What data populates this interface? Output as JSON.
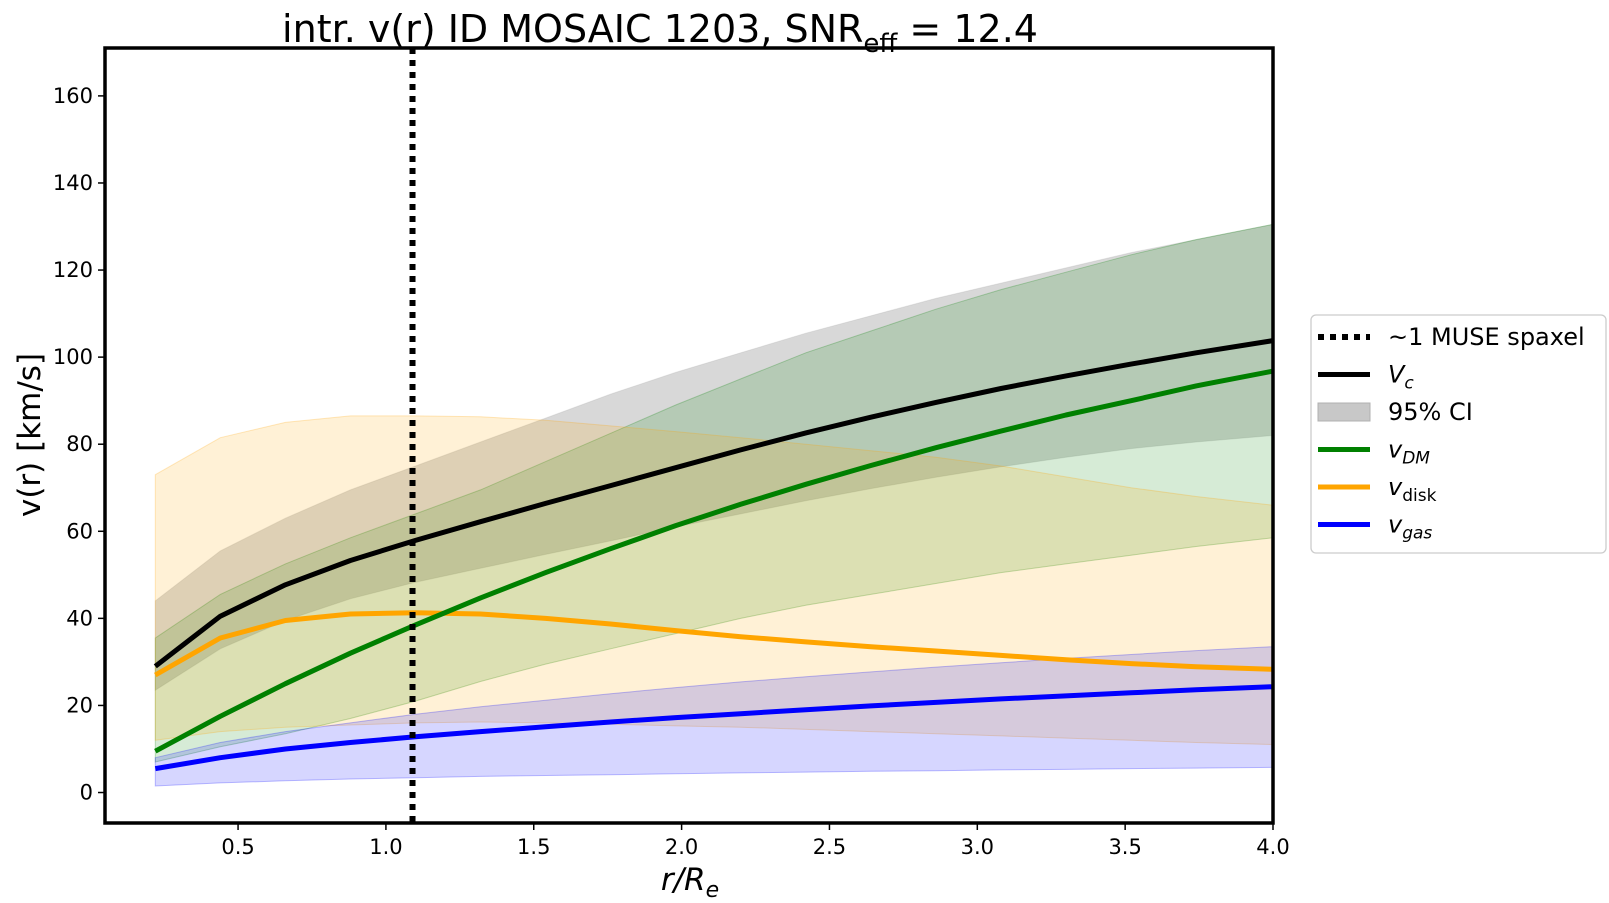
{
  "chart_data": {
    "type": "line",
    "title": {
      "main": "intr. v(r) ID MOSAIC 1203, SNR",
      "sub": "eff",
      "tail": " = 12.4"
    },
    "xlabel": {
      "main": "r/R",
      "sub": "e"
    },
    "ylabel": "v(r) [km/s]",
    "xlim": [
      0.05,
      4.0
    ],
    "ylim": [
      -7,
      171
    ],
    "xticks": [
      0.5,
      1.0,
      1.5,
      2.0,
      2.5,
      3.0,
      3.5,
      4.0
    ],
    "xtick_labels": [
      "0.5",
      "1.0",
      "1.5",
      "2.0",
      "2.5",
      "3.0",
      "3.5",
      "4.0"
    ],
    "yticks": [
      0,
      20,
      40,
      60,
      80,
      100,
      120,
      140,
      160
    ],
    "ytick_labels": [
      "0",
      "20",
      "40",
      "60",
      "80",
      "100",
      "120",
      "140",
      "160"
    ],
    "grid": false,
    "legend_position": "right, outside plot area",
    "vline": {
      "x": 1.09,
      "style": "dotted",
      "label": "~1 MUSE spaxel",
      "color": "#000000"
    },
    "x": [
      0.22,
      0.44,
      0.66,
      0.88,
      1.1,
      1.32,
      1.54,
      1.76,
      1.98,
      2.2,
      2.42,
      2.64,
      2.86,
      3.08,
      3.3,
      3.52,
      3.74,
      4.0
    ],
    "series": [
      {
        "key": "vc",
        "name": "V",
        "name_sub": "c",
        "color": "#000000",
        "values": [
          29,
          40.5,
          47.7,
          53.3,
          57.9,
          62.2,
          66.4,
          70.5,
          74.6,
          78.7,
          82.6,
          86.2,
          89.6,
          92.8,
          95.7,
          98.4,
          101,
          103.8
        ],
        "ci_lower": [
          23.5,
          33,
          39.5,
          44.5,
          48.3,
          51.5,
          54.7,
          57.8,
          61,
          64,
          67,
          69.8,
          72.4,
          74.8,
          77,
          79,
          80.5,
          82
        ],
        "ci_upper": [
          44,
          55.5,
          63,
          69.5,
          75,
          80.5,
          86,
          91.5,
          96.5,
          101,
          105.5,
          109.5,
          113.5,
          117,
          120.5,
          124,
          127,
          130.5
        ]
      },
      {
        "key": "vdm",
        "name": "v",
        "name_sub": "DM",
        "color": "#008000",
        "fill": "#7fc07f",
        "values": [
          9.5,
          17.5,
          25,
          32,
          38.5,
          44.7,
          50.5,
          56,
          61.3,
          66.2,
          70.8,
          75.1,
          79.2,
          83,
          86.7,
          90,
          93.4,
          96.8
        ],
        "ci_lower": [
          7,
          10.5,
          13.5,
          17,
          21,
          25.5,
          29.5,
          33,
          36.5,
          40,
          43,
          45.5,
          48,
          50.5,
          52.5,
          54.5,
          56.5,
          58.5
        ],
        "ci_upper": [
          35.5,
          45.5,
          52.5,
          58.5,
          64,
          69.5,
          76,
          82.5,
          89,
          95,
          101,
          106,
          111,
          115.5,
          119.5,
          123.5,
          127,
          130.5
        ]
      },
      {
        "key": "vdisk",
        "name": "v",
        "name_sub": "disk",
        "color": "#FFA500",
        "fill": "#ffd28a",
        "values": [
          27,
          35.5,
          39.5,
          41,
          41.3,
          41,
          40,
          38.7,
          37.2,
          35.8,
          34.6,
          33.5,
          32.5,
          31.5,
          30.5,
          29.6,
          28.9,
          28.3
        ],
        "ci_lower": [
          12,
          14,
          15,
          15.5,
          16,
          16.2,
          16,
          15.7,
          15.3,
          15,
          14.5,
          14,
          13.5,
          13,
          12.5,
          12,
          11.5,
          11
        ],
        "ci_upper": [
          73,
          81.5,
          85,
          86.5,
          86.5,
          86.3,
          85.5,
          84.2,
          82.9,
          81.5,
          80,
          78.5,
          77,
          75,
          72.5,
          70,
          68,
          66
        ]
      },
      {
        "key": "vgas",
        "name": "v",
        "name_sub": "gas",
        "color": "#0000FF",
        "fill": "#8a8aff",
        "values": [
          5.5,
          8,
          10,
          11.5,
          12.8,
          14,
          15.1,
          16.2,
          17.2,
          18.1,
          19,
          19.9,
          20.7,
          21.5,
          22.2,
          22.9,
          23.6,
          24.3
        ],
        "ci_lower": [
          1.5,
          2.2,
          2.7,
          3.1,
          3.4,
          3.7,
          3.9,
          4.1,
          4.3,
          4.5,
          4.7,
          4.9,
          5,
          5.2,
          5.3,
          5.5,
          5.6,
          5.8
        ],
        "ci_upper": [
          8,
          11.5,
          14,
          16,
          18,
          19.7,
          21.2,
          22.7,
          24.1,
          25.4,
          26.6,
          27.7,
          28.8,
          29.8,
          30.8,
          31.7,
          32.6,
          33.5
        ]
      }
    ],
    "legend": [
      {
        "key": "vline",
        "label": "~1 MUSE spaxel"
      },
      {
        "key": "vc",
        "label": "V",
        "sub": "c"
      },
      {
        "key": "ci",
        "label": "95% CI",
        "color": "#c8c8c8"
      },
      {
        "key": "vdm",
        "label": "v",
        "sub": "DM"
      },
      {
        "key": "vdisk",
        "label": "v",
        "sub": "disk"
      },
      {
        "key": "vgas",
        "label": "v",
        "sub": "gas"
      }
    ]
  }
}
